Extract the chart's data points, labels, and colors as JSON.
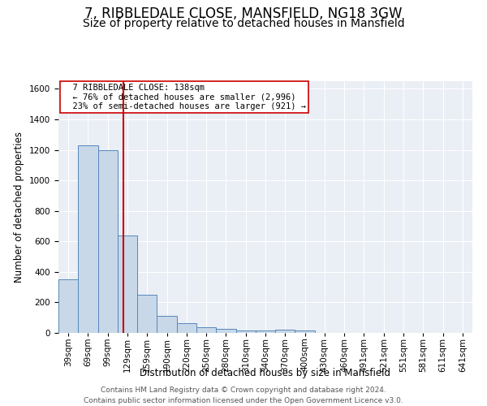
{
  "title": "7, RIBBLEDALE CLOSE, MANSFIELD, NG18 3GW",
  "subtitle": "Size of property relative to detached houses in Mansfield",
  "xlabel": "Distribution of detached houses by size in Mansfield",
  "ylabel": "Number of detached properties",
  "footer": "Contains HM Land Registry data © Crown copyright and database right 2024.\nContains public sector information licensed under the Open Government Licence v3.0.",
  "bin_labels": [
    "39sqm",
    "69sqm",
    "99sqm",
    "129sqm",
    "159sqm",
    "190sqm",
    "220sqm",
    "250sqm",
    "280sqm",
    "310sqm",
    "340sqm",
    "370sqm",
    "400sqm",
    "430sqm",
    "460sqm",
    "491sqm",
    "521sqm",
    "551sqm",
    "581sqm",
    "611sqm",
    "641sqm"
  ],
  "bin_values": [
    350,
    1230,
    1200,
    640,
    250,
    110,
    65,
    35,
    25,
    15,
    15,
    20,
    15,
    0,
    0,
    0,
    0,
    0,
    0,
    0,
    0
  ],
  "bar_color": "#c8d8e8",
  "bar_edge_color": "#5588bb",
  "red_line_x": 2.8,
  "red_line_color": "#cc0000",
  "annotation_text": "  7 RIBBLEDALE CLOSE: 138sqm\n  ← 76% of detached houses are smaller (2,996)\n  23% of semi-detached houses are larger (921) →",
  "annotation_box_color": "#ffffff",
  "annotation_box_edge_color": "#cc0000",
  "ylim": [
    0,
    1650
  ],
  "yticks": [
    0,
    200,
    400,
    600,
    800,
    1000,
    1200,
    1400,
    1600
  ],
  "title_fontsize": 12,
  "subtitle_fontsize": 10,
  "axis_label_fontsize": 8.5,
  "tick_fontsize": 7.5,
  "annotation_fontsize": 7.5,
  "footer_fontsize": 6.5
}
